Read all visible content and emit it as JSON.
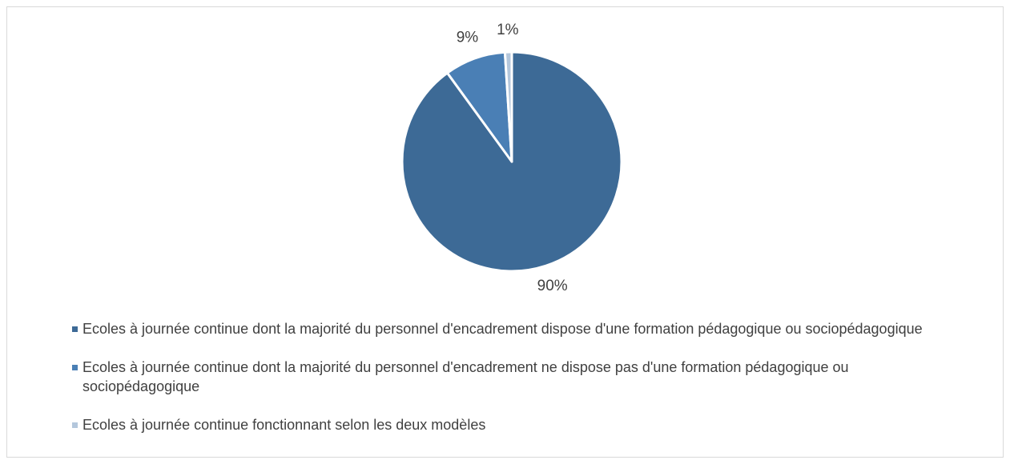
{
  "chart_data": {
    "type": "pie",
    "categories": [
      "Ecoles à journée continue dont la majorité du personnel d'encadrement dispose d'une formation pédagogique ou sociopédagogique",
      "Ecoles à journée continue dont la majorité du personnel d'encadrement ne dispose pas d'une formation pédagogique ou sociopédagogique",
      "Ecoles à journée continue fonctionnant selon les deux modèles"
    ],
    "values": [
      90,
      9,
      1
    ],
    "value_labels": [
      "90%",
      "9%",
      "1%"
    ],
    "colors": [
      "#3d6a96",
      "#4a7fb5",
      "#b4c7dc"
    ],
    "legend": "bottom"
  }
}
